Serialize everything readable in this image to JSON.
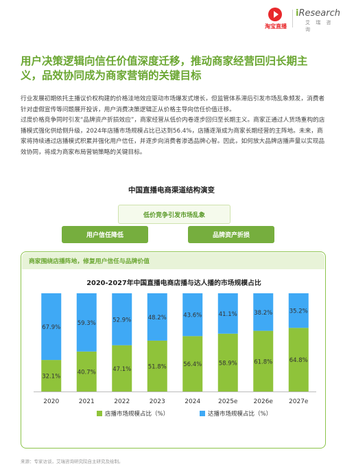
{
  "header": {
    "logo_left_text": "淘宝直播",
    "logo_right_i": "i",
    "logo_right_text": "Research",
    "logo_right_sub": "艾 瑞 咨 询"
  },
  "headline": "用户决策逻辑向信任价值深度迁移，推动商家经营回归长期主义，品效协同成为商家营销的关键目标",
  "paragraphs": [
    "行业发展初期依托主播议价权构建的价格洼地效应驱动市场爆发式增长，但监管体系滞后引发市场乱象频发，消费者针对虚假宣传等问题展开投诉，用户消费决策逻辑正从价格主导向信任价值迁移。",
    "过度价格竞争同时引发“品牌资产折损效应”，商家经营从低价内卷逐步回归至长期主义。商家正通过人货场重构的店播模式强化供给侧升级，2024年店播市场规模占比已达到56.4%，店播逐渐成为商家长期经营的主阵地。未来，商家将持续通过店播模式积累并强化用户信任，并逐步向消费者渗透品牌心智。因此，如何放大品牌店播声量以实现品效协同，将成为商家布局营销策略的关键目标。"
  ],
  "section_title": "中国直播电商渠道结构演变",
  "diagram": {
    "top": "低价竞争引发市场乱象",
    "left": "用户信任降低",
    "right": "品牌资产折损",
    "box_header": "商家围绕店播阵地，修复用户信任与品牌价值"
  },
  "chart_data": {
    "type": "bar",
    "stacked": true,
    "percent_stacked": true,
    "title": "2020-2027年中国直播电商店播与达人播的市场规模占比",
    "categories": [
      "2020",
      "2021",
      "2022",
      "2023",
      "2024",
      "2025e",
      "2026e",
      "2027e"
    ],
    "series": [
      {
        "name": "店播市场规模占比（%）",
        "values": [
          32.1,
          40.7,
          47.1,
          51.8,
          56.4,
          58.9,
          61.8,
          64.8
        ],
        "color": "#8fc33a"
      },
      {
        "name": "达播市场规模占比（%）",
        "values": [
          67.9,
          59.3,
          52.9,
          48.2,
          43.6,
          41.1,
          38.2,
          35.2
        ],
        "color": "#3fa9f5"
      }
    ],
    "value_format": "{v}%",
    "ylim": [
      0,
      100
    ],
    "grid": false,
    "legend_position": "bottom"
  },
  "footnote": "来源：专家访谈，艾瑞咨询研究院自主研究及绘制。"
}
